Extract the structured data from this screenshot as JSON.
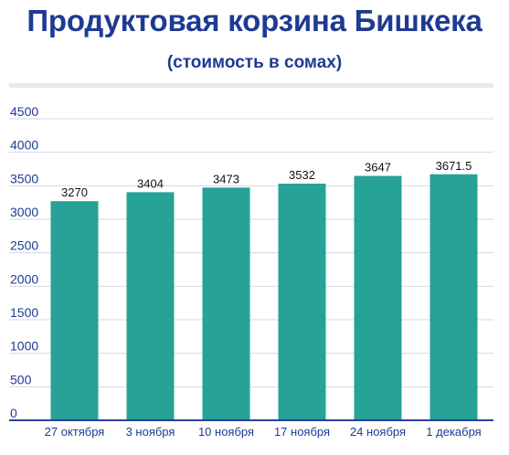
{
  "chart_data": {
    "type": "bar",
    "title": "Продуктовая корзина Бишкека",
    "subtitle": "(стоимость в сомах)",
    "categories": [
      "27 октября",
      "3 ноября",
      "10 ноября",
      "17 ноября",
      "24 ноября",
      "1 декабря"
    ],
    "values": [
      3270,
      3404,
      3473,
      3532,
      3647,
      3671.5
    ],
    "value_labels": [
      "3270",
      "3404",
      "3473",
      "3532",
      "3647",
      "3671.5"
    ],
    "ylim": [
      0,
      4500
    ],
    "yticks": [
      0,
      500,
      1000,
      1500,
      2000,
      2500,
      3000,
      3500,
      4000,
      4500
    ],
    "xlabel": "",
    "ylabel": "",
    "grid": true,
    "legend": "none",
    "colors": {
      "bar": "#26a296",
      "title": "#1f3a93",
      "axis": "#2a3fa0",
      "grid": "#d6d6e6"
    }
  }
}
